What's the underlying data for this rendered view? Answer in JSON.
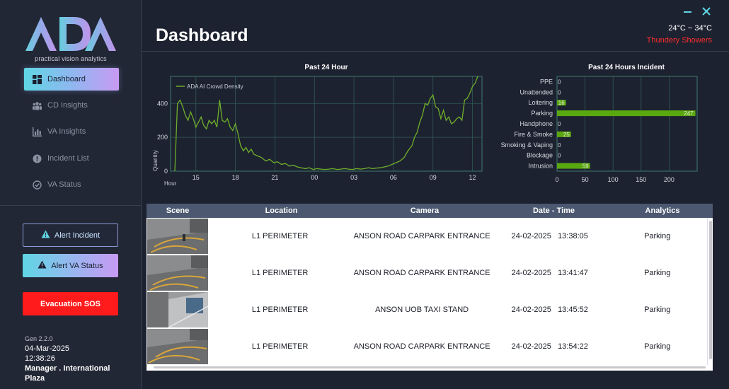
{
  "app": {
    "logo_text": "ADA",
    "tagline": "practical vision analytics"
  },
  "sidebar": {
    "items": [
      {
        "label": "Dashboard",
        "icon": "dashboard-icon",
        "active": true
      },
      {
        "label": "CD Insights",
        "icon": "people-icon",
        "active": false
      },
      {
        "label": "VA Insights",
        "icon": "bar-chart-icon",
        "active": false
      },
      {
        "label": "Incident List",
        "icon": "alert-circle-icon",
        "active": false
      },
      {
        "label": "VA Status",
        "icon": "check-circle-icon",
        "active": false
      }
    ],
    "alert_incident": "Alert Incident",
    "alert_va_status": "Alert VA Status",
    "sos": "Evacuation SOS",
    "version": "Gen 2.2.0",
    "date": "04-Mar-2025",
    "time": "12:38:26",
    "user_line1": "Manager . International",
    "user_line2": "Plaza"
  },
  "header": {
    "title": "Dashboard",
    "temperature": "24°C ~ 34°C",
    "weather": "Thundery Showers"
  },
  "colors": {
    "accent_cyan": "#5fd6e4",
    "accent_purple": "#c89af3",
    "sos_red": "#ff1b1b",
    "weather_red": "#ff2d2d",
    "series_green": "#6fae2a",
    "bar_green": "#5aa80f",
    "table_header": "#4b5870"
  },
  "chart_data": [
    {
      "type": "line",
      "title": "Past 24 Hour",
      "xlabel": "Hour",
      "ylabel": "Quantity",
      "x_ticks": [
        "15",
        "18",
        "21",
        "00",
        "03",
        "06",
        "09",
        "12"
      ],
      "y_ticks": [
        0,
        200,
        400
      ],
      "ylim": [
        0,
        560
      ],
      "grid": true,
      "legend": "top-left",
      "series": [
        {
          "name": "ADA AI Crowd Density",
          "x": [
            0,
            0.2,
            0.4,
            0.6,
            0.8,
            1.0,
            1.2,
            1.4,
            1.6,
            1.8,
            2.0,
            2.2,
            2.4,
            2.6,
            2.8,
            3.0,
            3.2,
            3.4,
            3.6,
            3.8,
            4.0,
            4.2,
            4.4,
            4.6,
            4.8,
            5.0,
            5.2,
            5.4,
            5.6,
            5.8,
            6.0,
            6.3,
            6.6,
            6.9,
            7.2,
            7.5,
            7.8,
            8.1,
            8.4,
            8.7,
            9.0,
            9.3,
            9.6,
            9.9,
            10.2,
            10.5,
            10.8,
            11.1,
            11.4,
            11.7,
            12.0,
            12.3,
            12.6,
            12.9,
            13.2,
            13.5,
            13.8,
            14.1,
            14.4,
            14.7,
            15.0,
            15.3,
            15.6,
            15.9,
            16.2,
            16.5,
            16.8,
            17.1,
            17.4,
            17.7,
            18.0,
            18.2,
            18.4,
            18.6,
            18.8,
            19.0,
            19.2,
            19.4,
            19.6,
            19.8,
            20.0,
            20.2,
            20.4,
            20.6,
            20.8,
            21.0,
            21.2,
            21.4,
            21.6,
            21.8,
            22.0,
            22.2,
            22.4,
            22.6,
            22.8,
            23.0
          ],
          "values": [
            0,
            400,
            420,
            380,
            330,
            300,
            350,
            310,
            260,
            290,
            320,
            270,
            250,
            300,
            280,
            300,
            260,
            420,
            300,
            290,
            310,
            260,
            240,
            280,
            220,
            150,
            120,
            140,
            110,
            130,
            100,
            90,
            80,
            60,
            70,
            50,
            55,
            40,
            45,
            30,
            35,
            25,
            20,
            15,
            20,
            10,
            15,
            12,
            10,
            12,
            15,
            10,
            12,
            15,
            12,
            10,
            15,
            12,
            15,
            20,
            15,
            18,
            20,
            25,
            30,
            40,
            50,
            60,
            80,
            120,
            150,
            200,
            230,
            290,
            330,
            400,
            390,
            430,
            450,
            380,
            370,
            310,
            360,
            300,
            320,
            280,
            290,
            310,
            320,
            300,
            420,
            430,
            460,
            500,
            520,
            560
          ]
        }
      ]
    },
    {
      "type": "bar",
      "orientation": "horizontal",
      "title": "Past 24 Hours Incident",
      "categories": [
        "PPE",
        "Unattended",
        "Loitering",
        "Parking",
        "Handphone",
        "Fire & Smoke",
        "Smoking & Vaping",
        "Blockage",
        "Intrusion"
      ],
      "values": [
        0,
        0,
        16,
        247,
        0,
        25,
        0,
        0,
        59
      ],
      "x_ticks": [
        0,
        50,
        100,
        150,
        200
      ],
      "xlim": [
        0,
        250
      ],
      "grid": true
    }
  ],
  "table": {
    "headers": [
      "Scene",
      "Location",
      "Camera",
      "Date - Time",
      "Analytics"
    ],
    "rows": [
      {
        "location": "L1 PERIMETER",
        "camera": "ANSON ROAD CARPARK ENTRANCE",
        "date": "24-02-2025",
        "time": "13:38:05",
        "analytics": "Parking"
      },
      {
        "location": "L1 PERIMETER",
        "camera": "ANSON ROAD CARPARK ENTRANCE",
        "date": "24-02-2025",
        "time": "13:41:47",
        "analytics": "Parking"
      },
      {
        "location": "L1 PERIMETER",
        "camera": "ANSON UOB TAXI STAND",
        "date": "24-02-2025",
        "time": "13:45:52",
        "analytics": "Parking"
      },
      {
        "location": "L1 PERIMETER",
        "camera": "ANSON ROAD CARPARK ENTRANCE",
        "date": "24-02-2025",
        "time": "13:54:22",
        "analytics": "Parking"
      }
    ]
  }
}
